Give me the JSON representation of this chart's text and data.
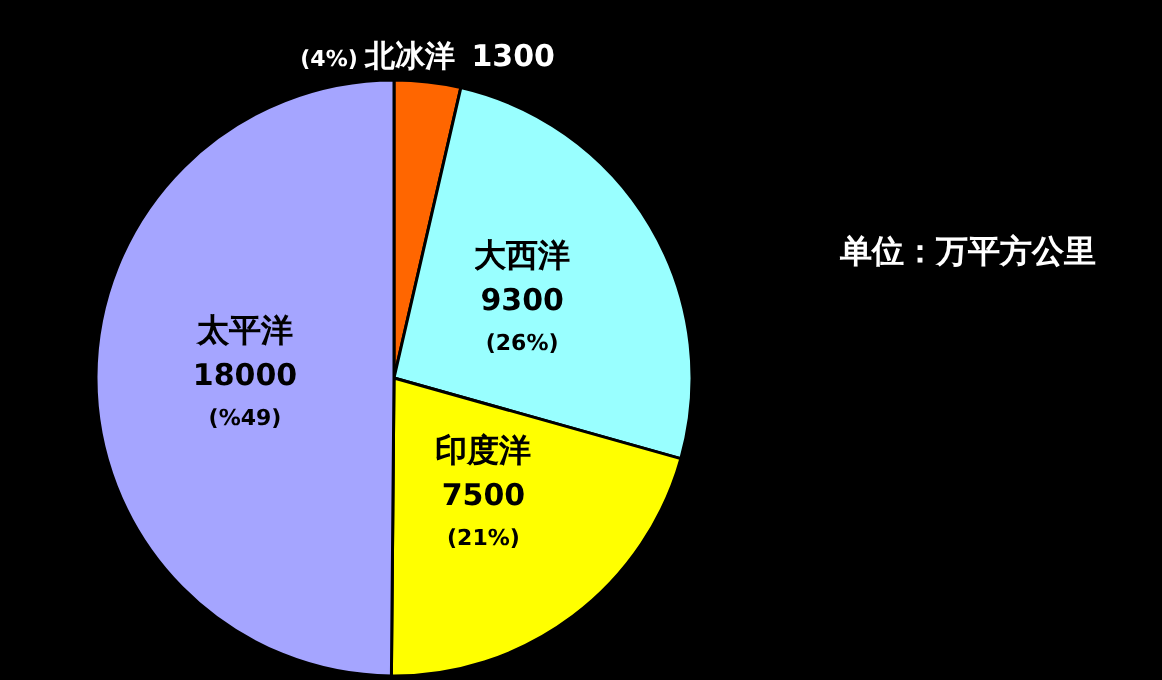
{
  "chart_data": {
    "type": "pie",
    "subtitle": "单位：万平方公里",
    "categories": [
      "北冰洋",
      "大西洋",
      "印度洋",
      "太平洋"
    ],
    "values": [
      1300,
      9300,
      7500,
      18000
    ],
    "colors": [
      "#ff6600",
      "#99ffff",
      "#ffff00",
      "#a5a5ff"
    ],
    "data_labels": true,
    "annotations": [
      {
        "text": "(4%)",
        "x": "北冰洋"
      },
      {
        "text": "(26%)",
        "x": "大西洋"
      },
      {
        "text": "(21%)",
        "x": "印度洋"
      },
      {
        "text": "(%49)",
        "x": "太平洋"
      }
    ],
    "legend": false
  }
}
